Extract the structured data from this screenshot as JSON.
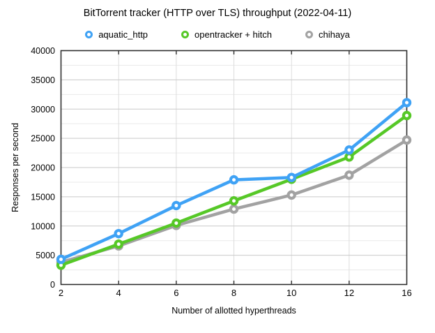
{
  "chart_data": {
    "type": "line",
    "title": "BitTorrent tracker (HTTP over TLS) throughput (2022-04-11)",
    "xlabel": "Number of allotted hyperthreads",
    "ylabel": "Responses per second",
    "categories": [
      2,
      4,
      6,
      8,
      10,
      12,
      16
    ],
    "x_tick_labels": [
      "2",
      "4",
      "6",
      "8",
      "10",
      "12",
      "16"
    ],
    "ylim": [
      0,
      40000
    ],
    "y_major_step": 5000,
    "y_minor_step": 2500,
    "y_tick_labels": [
      "0",
      "5000",
      "10000",
      "15000",
      "20000",
      "25000",
      "30000",
      "35000",
      "40000"
    ],
    "grid": true,
    "legend_position": "top",
    "x_axis_categorical_equal_spacing": true,
    "series": [
      {
        "name": "aquatic_http",
        "color": "#3fa2f5",
        "values": [
          4300,
          8700,
          13500,
          17900,
          18300,
          23000,
          31100
        ]
      },
      {
        "name": "opentracker + hitch",
        "color": "#56c827",
        "values": [
          3300,
          6900,
          10500,
          14300,
          18000,
          21800,
          28900
        ]
      },
      {
        "name": "chihaya",
        "color": "#a2a2a2",
        "values": [
          3800,
          6600,
          10100,
          12900,
          15300,
          18700,
          24700
        ]
      }
    ]
  },
  "style_colors": {
    "axis_border": "#2d2d2d",
    "grid_major": "#c9c9c9",
    "grid_minor": "#eaeaea",
    "grid_vertical": "#dddddd",
    "marker_fill": "#ffffff",
    "background": "#ffffff"
  }
}
